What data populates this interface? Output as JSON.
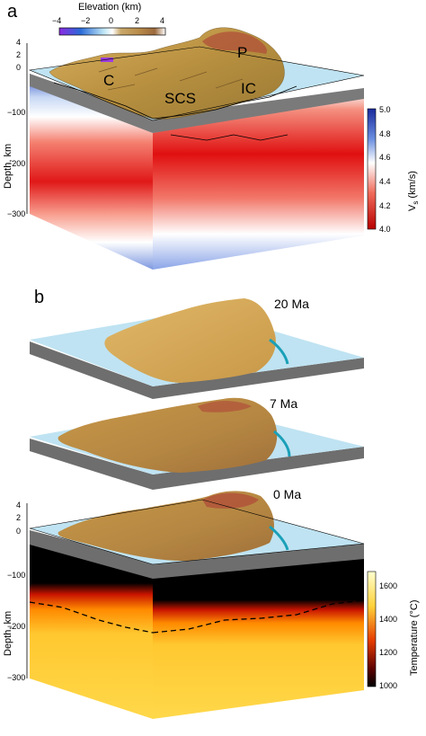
{
  "panel_a": {
    "letter": "a",
    "elevation_colorbar": {
      "title": "Elevation (km)",
      "ticks": [
        "−4",
        "−2",
        "0",
        "2",
        "4"
      ]
    },
    "region_labels": [
      "C",
      "SCS",
      "IC",
      "P"
    ],
    "depth_axis": {
      "title": "Depth, km",
      "ticks": [
        "4",
        "2",
        "0",
        "−100",
        "−200",
        "−300"
      ]
    },
    "vs_colorbar": {
      "title_main": "V",
      "title_sub": "s",
      "title_unit": " (km/s)",
      "ticks": [
        "5.0",
        "4.8",
        "4.6",
        "4.4",
        "4.2",
        "4.0"
      ]
    },
    "colors": {
      "slow": "#e60000",
      "neutral": "#ffffff",
      "fast": "#1e3cc8"
    }
  },
  "panel_b": {
    "letter": "b",
    "ages": [
      "20 Ma",
      "7 Ma",
      "0 Ma"
    ],
    "depth_axis": {
      "title": "Depth, km",
      "ticks": [
        "4",
        "2",
        "0",
        "−100",
        "−200",
        "−300"
      ]
    },
    "temperature_colorbar": {
      "title": "Temperature (°C)",
      "ticks": [
        "1600",
        "1400",
        "1200",
        "1000"
      ]
    },
    "colors": {
      "hot": "#ffe860",
      "mid": "#e02000",
      "cold": "#000000"
    }
  }
}
